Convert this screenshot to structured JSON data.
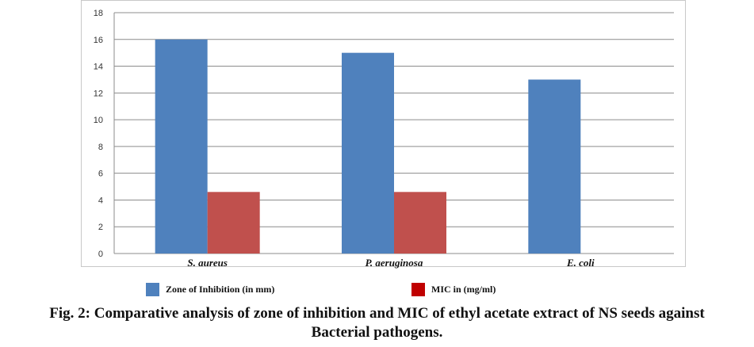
{
  "chart_data": {
    "type": "bar",
    "categories": [
      "S. aureus",
      "P. aeruginosa",
      "E. coli"
    ],
    "series": [
      {
        "name": "Zone of  Inhibition (in mm)",
        "values": [
          16,
          15,
          13
        ],
        "color": "#4F81BD"
      },
      {
        "name": "MIC in (mg/ml)",
        "values": [
          4.6,
          4.6,
          null
        ],
        "color": "#C0504D"
      }
    ],
    "ylim": [
      0,
      18
    ],
    "yticks": [
      0,
      2,
      4,
      6,
      8,
      10,
      12,
      14,
      16,
      18
    ],
    "grid": true,
    "legend_position": "bottom",
    "legend_swatch_colors": [
      "#4F81BD",
      "#C00000"
    ],
    "xlabel": "",
    "ylabel": ""
  },
  "caption": {
    "line1": "Fig. 2: Comparative analysis of zone of inhibition and MIC of ethyl acetate extract of NS seeds against",
    "line2": "Bacterial pathogens."
  }
}
